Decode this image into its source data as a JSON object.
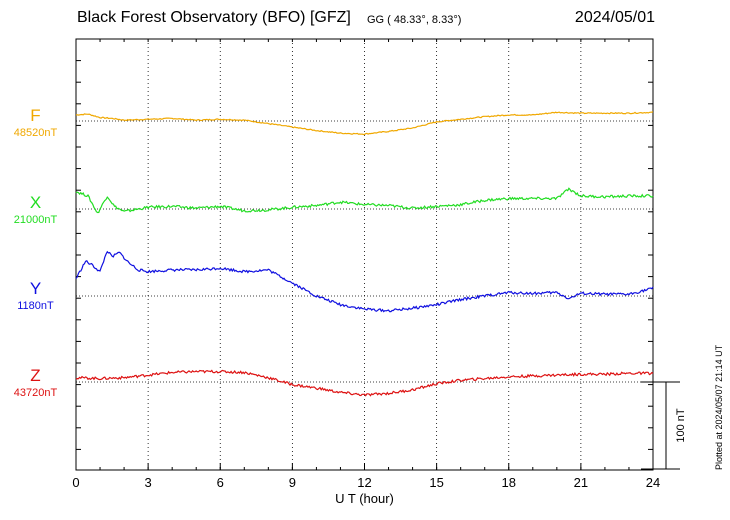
{
  "header": {
    "title": "Black Forest Observatory (BFO)  [GFZ]",
    "coords": "GG ( 48.33°,   8.33°)",
    "date": "2024/05/01"
  },
  "footer": {
    "plotted": "Plotted at 2024/05/07 21:14 UT"
  },
  "chart_data": {
    "type": "line",
    "xlabel": "U T (hour)",
    "xlim": [
      0,
      24
    ],
    "x_ticks": [
      "0",
      "3",
      "6",
      "9",
      "12",
      "15",
      "18",
      "21",
      "24"
    ],
    "grid": true,
    "scale_bar_label": "100 nT",
    "scale_bar_nT": 100,
    "series": [
      {
        "name": "F",
        "baseline": "48520nT",
        "color": "#f0a800",
        "x": [
          0,
          0.5,
          1,
          1.5,
          2,
          3,
          4,
          5,
          6,
          7,
          8,
          9,
          10,
          11,
          12,
          13,
          14,
          15,
          16,
          17,
          18,
          19,
          20,
          21,
          22,
          23,
          24
        ],
        "dev": [
          7,
          8,
          4,
          3,
          1,
          2,
          3,
          1,
          2,
          1,
          -3,
          -7,
          -11,
          -14,
          -15,
          -12,
          -8,
          -1,
          2,
          5,
          7,
          7,
          10,
          9,
          9,
          9,
          10
        ]
      },
      {
        "name": "X",
        "baseline": "21000nT",
        "color": "#22dd22",
        "x": [
          0,
          0.5,
          0.9,
          1.3,
          1.6,
          2,
          3,
          4,
          5,
          6,
          7,
          8,
          9,
          10,
          11,
          12,
          13,
          14,
          15,
          16,
          17,
          18,
          19,
          20,
          20.5,
          21,
          22,
          23,
          24
        ],
        "dev": [
          20,
          15,
          -5,
          15,
          3,
          -3,
          2,
          3,
          1,
          3,
          -2,
          -1,
          2,
          4,
          8,
          5,
          4,
          1,
          3,
          5,
          10,
          12,
          12,
          12,
          23,
          15,
          14,
          15,
          15
        ]
      },
      {
        "name": "Y",
        "baseline": "1180nT",
        "color": "#1010e0",
        "x": [
          0,
          0.4,
          0.7,
          1,
          1.3,
          1.5,
          1.8,
          2.2,
          2.6,
          3,
          4,
          5,
          6,
          7,
          8,
          9,
          10,
          11,
          12,
          13,
          14,
          15,
          16,
          17,
          18,
          19,
          20,
          20.5,
          21,
          22,
          23,
          24
        ],
        "dev": [
          20,
          40,
          35,
          28,
          52,
          45,
          50,
          38,
          30,
          28,
          30,
          30,
          32,
          28,
          30,
          15,
          0,
          -10,
          -15,
          -17,
          -14,
          -10,
          -4,
          0,
          4,
          3,
          4,
          -3,
          3,
          2,
          2,
          9
        ]
      },
      {
        "name": "Z",
        "baseline": "43720nT",
        "color": "#dd1111",
        "x": [
          0,
          1,
          2,
          3,
          4,
          5,
          6,
          7,
          8,
          9,
          10,
          11,
          12,
          13,
          14,
          15,
          16,
          17,
          18,
          19,
          20,
          21,
          22,
          23,
          24
        ],
        "dev": [
          5,
          4,
          5,
          8,
          11,
          12,
          12,
          11,
          5,
          -3,
          -7,
          -12,
          -15,
          -13,
          -9,
          -2,
          2,
          4,
          6,
          7,
          8,
          9,
          9,
          10,
          10
        ]
      }
    ]
  }
}
